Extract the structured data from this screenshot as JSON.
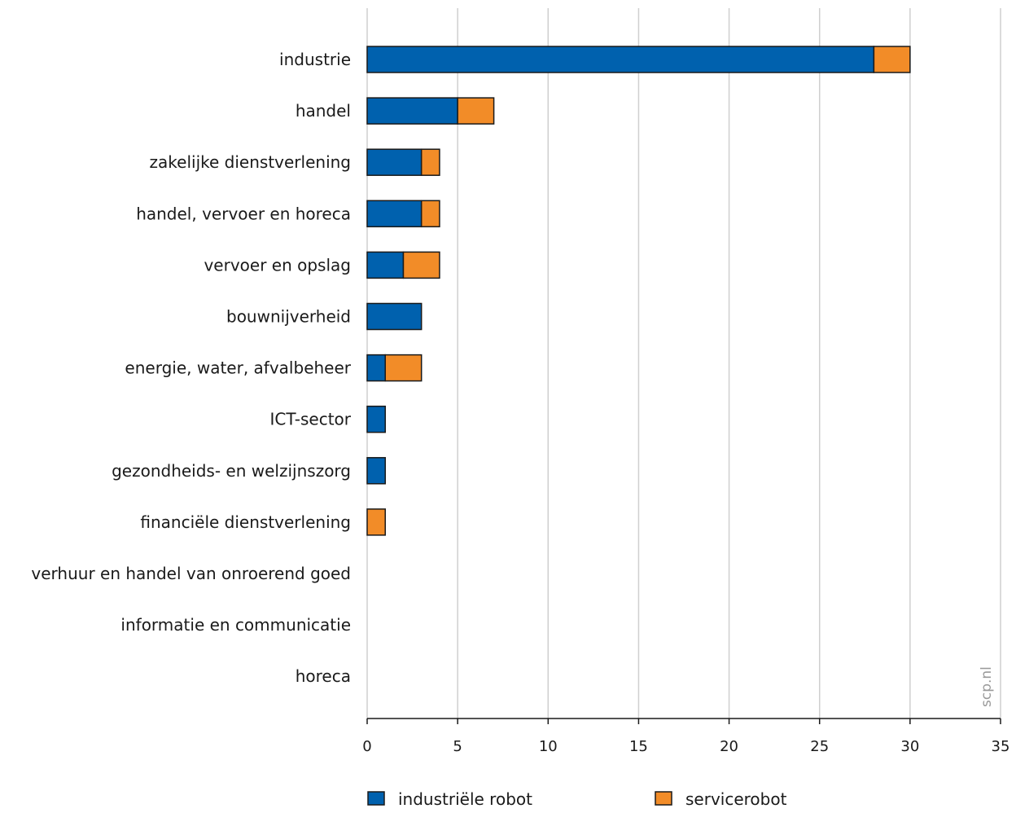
{
  "chart_data": {
    "type": "bar",
    "orientation": "horizontal",
    "stacked": true,
    "categories": [
      "industrie",
      "handel",
      "zakelijke dienstverlening",
      "handel, vervoer en horeca",
      "vervoer en opslag",
      "bouwnijverheid",
      "energie, water, afvalbeheer",
      "ICT-sector",
      "gezondheids- en welzijnszorg",
      "financiële dienstverlening",
      "verhuur en handel van onroerend goed",
      "informatie en communicatie",
      "horeca"
    ],
    "series": [
      {
        "name": "industriële robot",
        "color": "#0061ae",
        "values": [
          28,
          5,
          3,
          3,
          2,
          3,
          1,
          1,
          1,
          0,
          0,
          0,
          0
        ]
      },
      {
        "name": "servicerobot",
        "color": "#f28c28",
        "values": [
          2,
          2,
          1,
          1,
          2,
          0,
          2,
          0,
          0,
          1,
          0,
          0,
          0
        ]
      }
    ],
    "xlim": [
      0,
      35
    ],
    "xticks": [
      0,
      5,
      10,
      15,
      20,
      25,
      30,
      35
    ],
    "grid": true,
    "legend_position": "bottom",
    "xlabel": "",
    "ylabel": "",
    "title": ""
  },
  "watermark": "scp.nl"
}
